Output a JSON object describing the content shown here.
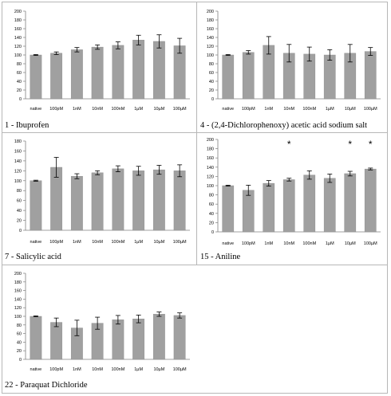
{
  "colors": {
    "bar": "#a0a0a0",
    "bar_stroke": "#8a8a8a",
    "axis": "#808080",
    "text": "#000000"
  },
  "categories": [
    "native",
    "100pM",
    "1nM",
    "10nM",
    "100nM",
    "1µM",
    "10µM",
    "100µM"
  ],
  "yticks": [
    "0",
    "20",
    "40",
    "60",
    "80",
    "100",
    "120",
    "140",
    "160",
    "180",
    "200"
  ],
  "panels": [
    {
      "number": "1",
      "name": "Ibuprofen"
    },
    {
      "number": "4",
      "name": "(2,4-Dichlorophenoxy) acetic acid sodium salt"
    },
    {
      "number": "7",
      "name": "Salicylic acid"
    },
    {
      "number": "15",
      "name": "Aniline"
    },
    {
      "number": "22",
      "name": "Paraquat Dichloride"
    }
  ],
  "chart_data": [
    {
      "type": "bar",
      "ylim": [
        0,
        200
      ],
      "categories": [
        "native",
        "100pM",
        "1nM",
        "10nM",
        "100nM",
        "1µM",
        "10µM",
        "100µM"
      ],
      "values": [
        100,
        104,
        112,
        118,
        122,
        134,
        131,
        121
      ],
      "errors": [
        1,
        3,
        5,
        5,
        8,
        11,
        15,
        17
      ]
    },
    {
      "type": "bar",
      "ylim": [
        0,
        200
      ],
      "categories": [
        "native",
        "100pM",
        "1nM",
        "10nM",
        "100nM",
        "1µM",
        "10µM",
        "100µM"
      ],
      "values": [
        100,
        106,
        122,
        104,
        102,
        100,
        104,
        108
      ],
      "errors": [
        1,
        4,
        20,
        20,
        16,
        12,
        20,
        9
      ]
    },
    {
      "type": "bar",
      "ylim": [
        0,
        180
      ],
      "categories": [
        "native",
        "100pM",
        "1nM",
        "10nM",
        "100nM",
        "1µM",
        "10µM",
        "100µM"
      ],
      "values": [
        100,
        127,
        109,
        116,
        124,
        120,
        122,
        120
      ],
      "errors": [
        1,
        20,
        5,
        4,
        6,
        9,
        9,
        12
      ]
    },
    {
      "type": "bar",
      "ylim": [
        0,
        200
      ],
      "categories": [
        "native",
        "100pM",
        "1nM",
        "10nM",
        "100nM",
        "1µM",
        "10µM",
        "100µM"
      ],
      "values": [
        100,
        90,
        105,
        113,
        123,
        116,
        126,
        136
      ],
      "errors": [
        1,
        11,
        6,
        3,
        9,
        9,
        5,
        2
      ],
      "significant": [
        "",
        "",
        "",
        "*",
        "",
        "",
        "*",
        "*"
      ]
    },
    {
      "type": "bar",
      "ylim": [
        0,
        200
      ],
      "categories": [
        "native",
        "100pM",
        "1nM",
        "10nM",
        "100nM",
        "1µM",
        "10µM",
        "100µM"
      ],
      "values": [
        100,
        86,
        73,
        84,
        92,
        94,
        105,
        102
      ],
      "errors": [
        1,
        10,
        18,
        14,
        10,
        9,
        5,
        6
      ]
    }
  ]
}
